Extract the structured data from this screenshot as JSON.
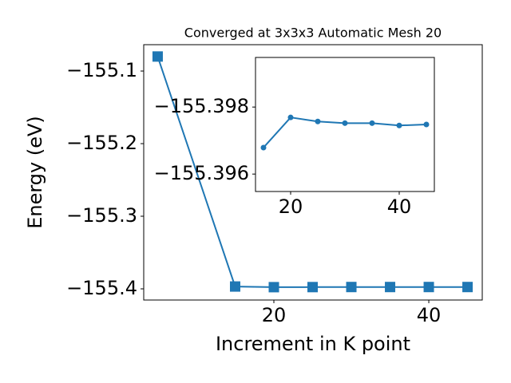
{
  "chart_data": [
    {
      "type": "line",
      "title": "Converged at 3x3x3 Automatic Mesh 20",
      "x_label": "Increment in K point",
      "y_label": "Energy (eV)",
      "x": [
        5,
        15,
        20,
        25,
        30,
        35,
        40,
        45
      ],
      "series": [
        {
          "color": "#1f77b4",
          "marker": "square",
          "values": [
            -155.08,
            -155.3968,
            -155.3977,
            -155.3976,
            -155.3975,
            -155.3975,
            -155.3975,
            -155.3975
          ]
        }
      ],
      "xlim": [
        3.2,
        46.9
      ],
      "xticks": [
        20,
        40
      ],
      "ylim": [
        -155.4154,
        -155.0637
      ],
      "yticks": [
        {
          "value": -155.1,
          "label": "−155.1"
        },
        {
          "value": -155.2,
          "label": "−155.2"
        },
        {
          "value": -155.3,
          "label": "−155.3"
        },
        {
          "value": -155.4,
          "label": "−155.4"
        }
      ]
    },
    {
      "type": "line",
      "x": [
        15,
        20,
        25,
        30,
        35,
        40,
        45
      ],
      "series": [
        {
          "color": "#1f77b4",
          "marker": "circle",
          "values": [
            -155.39679,
            -155.39769,
            -155.39757,
            -155.39752,
            -155.39752,
            -155.39745,
            -155.39748
          ]
        }
      ],
      "xlim": [
        13.53,
        46.47
      ],
      "xticks": [
        20,
        40
      ],
      "ylim": [
        -155.39548,
        -155.39948
      ],
      "yticks": [
        {
          "value": -155.398,
          "label": "−155.398"
        },
        {
          "value": -155.396,
          "label": "−155.396"
        }
      ]
    }
  ]
}
